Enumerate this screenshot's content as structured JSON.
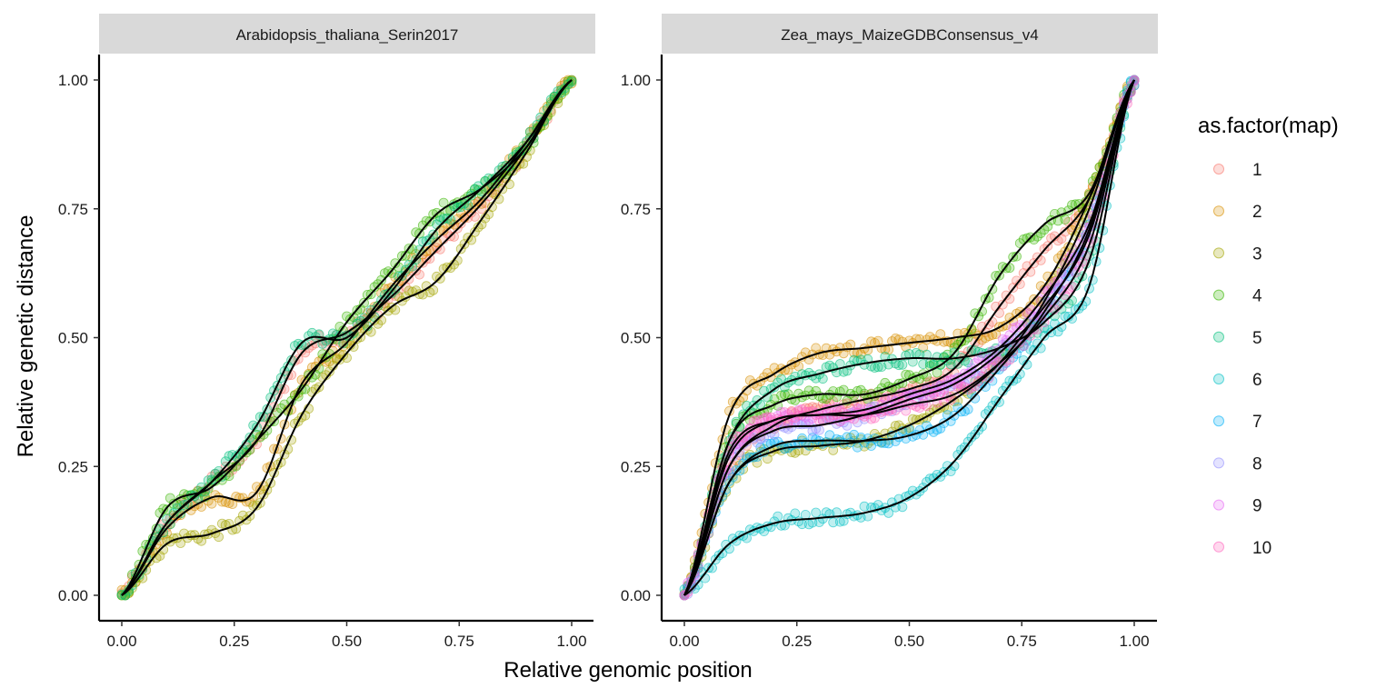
{
  "chart_data": {
    "type": "scatter",
    "facet_by": "map",
    "xlabel": "Relative genomic position",
    "ylabel": "Relative genetic distance",
    "xlim": [
      0,
      1
    ],
    "ylim": [
      0,
      1
    ],
    "x_ticks": [
      "0.00",
      "0.25",
      "0.50",
      "0.75",
      "1.00"
    ],
    "y_ticks": [
      "0.00",
      "0.25",
      "0.50",
      "0.75",
      "1.00"
    ],
    "grid": false,
    "point_alpha": 0.25,
    "smooth_line_color": "#000000",
    "legend": {
      "title": "as.factor(map)",
      "position": "right",
      "entries": [
        {
          "label": "1",
          "color": "#F8766D"
        },
        {
          "label": "2",
          "color": "#D89000"
        },
        {
          "label": "3",
          "color": "#A3A500"
        },
        {
          "label": "4",
          "color": "#39B600"
        },
        {
          "label": "5",
          "color": "#00BF7D"
        },
        {
          "label": "6",
          "color": "#00BFC4"
        },
        {
          "label": "7",
          "color": "#00B0F6"
        },
        {
          "label": "8",
          "color": "#9590FF"
        },
        {
          "label": "9",
          "color": "#E76BF3"
        },
        {
          "label": "10",
          "color": "#FF62BC"
        }
      ]
    },
    "panels": [
      {
        "title": "Arabidopsis_thaliana_Serin2017",
        "series": [
          {
            "map": "1",
            "color": "#F8766D",
            "x": [
              0,
              0.1,
              0.2,
              0.3,
              0.4,
              0.5,
              0.6,
              0.7,
              0.8,
              0.9,
              1
            ],
            "y": [
              0,
              0.14,
              0.22,
              0.3,
              0.47,
              0.51,
              0.58,
              0.67,
              0.76,
              0.87,
              1
            ]
          },
          {
            "map": "2",
            "color": "#D89000",
            "x": [
              0,
              0.1,
              0.2,
              0.3,
              0.4,
              0.5,
              0.6,
              0.7,
              0.8,
              0.9,
              1
            ],
            "y": [
              0,
              0.13,
              0.19,
              0.2,
              0.41,
              0.49,
              0.6,
              0.69,
              0.77,
              0.88,
              1
            ]
          },
          {
            "map": "3",
            "color": "#A3A500",
            "x": [
              0,
              0.1,
              0.2,
              0.3,
              0.4,
              0.5,
              0.6,
              0.7,
              0.8,
              0.9,
              1
            ],
            "y": [
              0,
              0.1,
              0.12,
              0.17,
              0.35,
              0.47,
              0.56,
              0.61,
              0.73,
              0.86,
              1
            ]
          },
          {
            "map": "4",
            "color": "#39B600",
            "x": [
              0,
              0.1,
              0.2,
              0.3,
              0.4,
              0.5,
              0.6,
              0.7,
              0.8,
              0.9,
              1
            ],
            "y": [
              0,
              0.17,
              0.21,
              0.3,
              0.4,
              0.53,
              0.63,
              0.74,
              0.79,
              0.87,
              1
            ]
          },
          {
            "map": "5",
            "color": "#00BF7D",
            "x": [
              0,
              0.1,
              0.2,
              0.3,
              0.4,
              0.5,
              0.6,
              0.7,
              0.8,
              0.9,
              1
            ],
            "y": [
              0,
              0.14,
              0.22,
              0.33,
              0.49,
              0.5,
              0.59,
              0.71,
              0.79,
              0.88,
              1
            ]
          }
        ]
      },
      {
        "title": "Zea_mays_MaizeGDBConsensus_v4",
        "series": [
          {
            "map": "1",
            "color": "#F8766D",
            "x": [
              0,
              0.1,
              0.2,
              0.3,
              0.4,
              0.5,
              0.6,
              0.7,
              0.8,
              0.9,
              1
            ],
            "y": [
              0,
              0.25,
              0.33,
              0.36,
              0.38,
              0.4,
              0.44,
              0.56,
              0.67,
              0.77,
              1
            ]
          },
          {
            "map": "2",
            "color": "#D89000",
            "x": [
              0,
              0.1,
              0.2,
              0.3,
              0.4,
              0.5,
              0.6,
              0.7,
              0.8,
              0.9,
              1
            ],
            "y": [
              0,
              0.35,
              0.43,
              0.47,
              0.48,
              0.49,
              0.5,
              0.52,
              0.6,
              0.77,
              1
            ]
          },
          {
            "map": "3",
            "color": "#A3A500",
            "x": [
              0,
              0.1,
              0.2,
              0.3,
              0.4,
              0.5,
              0.6,
              0.7,
              0.8,
              0.9,
              1
            ],
            "y": [
              0,
              0.22,
              0.28,
              0.29,
              0.3,
              0.33,
              0.38,
              0.45,
              0.57,
              0.75,
              1
            ]
          },
          {
            "map": "4",
            "color": "#39B600",
            "x": [
              0,
              0.1,
              0.2,
              0.3,
              0.4,
              0.5,
              0.6,
              0.7,
              0.8,
              0.9,
              1
            ],
            "y": [
              0,
              0.3,
              0.37,
              0.39,
              0.39,
              0.42,
              0.47,
              0.62,
              0.72,
              0.78,
              1
            ]
          },
          {
            "map": "5",
            "color": "#00BF7D",
            "x": [
              0,
              0.1,
              0.2,
              0.3,
              0.4,
              0.5,
              0.6,
              0.7,
              0.8,
              0.9,
              1
            ],
            "y": [
              0,
              0.3,
              0.4,
              0.43,
              0.45,
              0.46,
              0.46,
              0.48,
              0.53,
              0.65,
              1
            ]
          },
          {
            "map": "6",
            "color": "#00BFC4",
            "x": [
              0,
              0.1,
              0.2,
              0.3,
              0.4,
              0.5,
              0.6,
              0.7,
              0.8,
              0.9,
              1
            ],
            "y": [
              0,
              0.1,
              0.14,
              0.15,
              0.16,
              0.19,
              0.26,
              0.38,
              0.5,
              0.6,
              1
            ]
          },
          {
            "map": "7",
            "color": "#00B0F6",
            "x": [
              0,
              0.1,
              0.2,
              0.3,
              0.4,
              0.5,
              0.6,
              0.7,
              0.8,
              0.9,
              1
            ],
            "y": [
              0,
              0.22,
              0.29,
              0.3,
              0.3,
              0.31,
              0.35,
              0.44,
              0.55,
              0.71,
              1
            ]
          },
          {
            "map": "8",
            "color": "#9590FF",
            "x": [
              0,
              0.1,
              0.2,
              0.3,
              0.4,
              0.5,
              0.6,
              0.7,
              0.8,
              0.9,
              1
            ],
            "y": [
              0,
              0.25,
              0.32,
              0.33,
              0.35,
              0.38,
              0.41,
              0.47,
              0.56,
              0.7,
              1
            ]
          },
          {
            "map": "9",
            "color": "#E76BF3",
            "x": [
              0,
              0.1,
              0.2,
              0.3,
              0.4,
              0.5,
              0.6,
              0.7,
              0.8,
              0.9,
              1
            ],
            "y": [
              0,
              0.27,
              0.34,
              0.35,
              0.36,
              0.39,
              0.42,
              0.48,
              0.58,
              0.72,
              1
            ]
          },
          {
            "map": "10",
            "color": "#FF62BC",
            "x": [
              0,
              0.1,
              0.2,
              0.3,
              0.4,
              0.5,
              0.6,
              0.7,
              0.8,
              0.9,
              1
            ],
            "y": [
              0,
              0.28,
              0.34,
              0.35,
              0.35,
              0.37,
              0.39,
              0.45,
              0.54,
              0.68,
              1
            ]
          }
        ]
      }
    ]
  }
}
